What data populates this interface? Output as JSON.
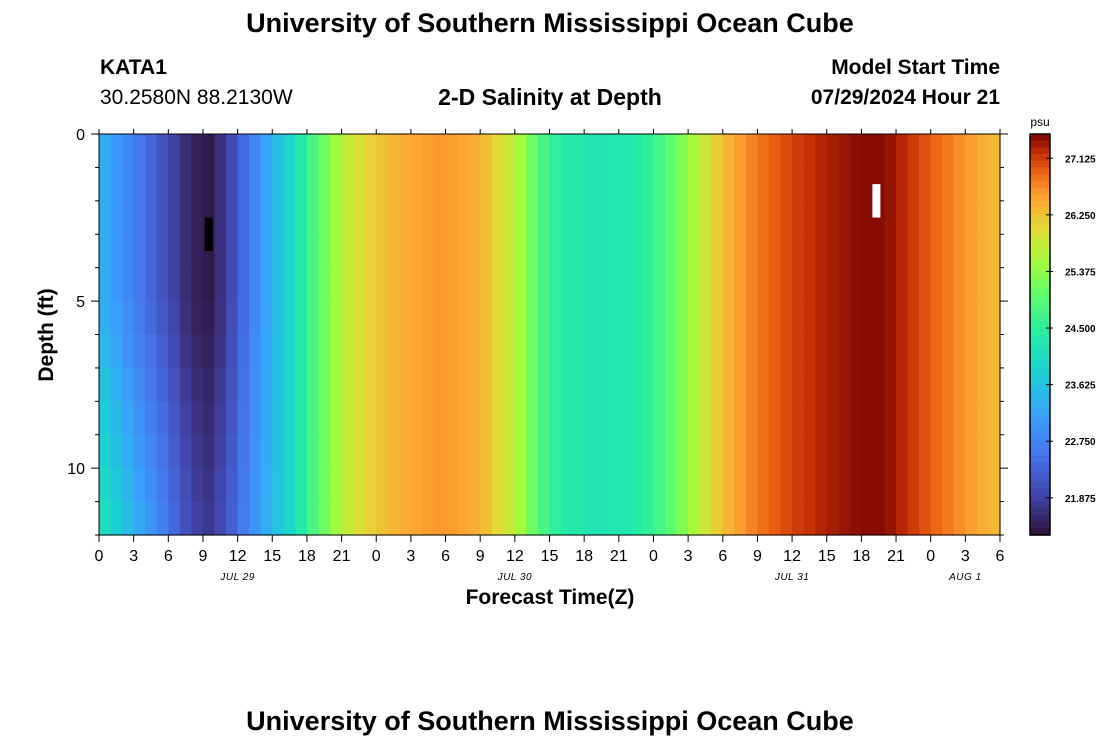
{
  "header": {
    "title": "University of Southern Mississippi Ocean Cube",
    "station_id": "KATA1",
    "coordinates": "30.2580N  88.2130W",
    "chart_title": "2-D Salinity at Depth",
    "model_start_label": "Model Start Time",
    "model_start_value": "07/29/2024 Hour 21"
  },
  "footer": {
    "title": "University of Southern Mississippi Ocean Cube"
  },
  "chart_data": {
    "type": "heatmap",
    "title": "2-D Salinity at Depth",
    "xlabel": "Forecast Time(Z)",
    "ylabel": "Depth (ft)",
    "x_hours_range": [
      0,
      78
    ],
    "x_ticks": [
      "0",
      "3",
      "6",
      "9",
      "12",
      "15",
      "18",
      "21",
      "0",
      "3",
      "6",
      "9",
      "12",
      "15",
      "18",
      "21",
      "0",
      "3",
      "6",
      "9",
      "12",
      "15",
      "18",
      "21",
      "0",
      "3",
      "6"
    ],
    "date_labels": [
      {
        "label": "JUL 29",
        "hour": 12
      },
      {
        "label": "JUL 30",
        "hour": 36
      },
      {
        "label": "JUL 31",
        "hour": 60
      },
      {
        "label": "AUG 1",
        "hour": 75
      }
    ],
    "y_range": [
      0,
      12
    ],
    "y_ticks": [
      "0",
      "5",
      "10"
    ],
    "y_tick_values": [
      0,
      5,
      10
    ],
    "colorbar_unit": "psu",
    "colorbar_ticks": [
      "27.125",
      "26.250",
      "25.375",
      "24.500",
      "23.625",
      "22.750",
      "21.875"
    ],
    "colorbar_values": [
      27.125,
      26.25,
      25.375,
      24.5,
      23.625,
      22.75,
      21.875
    ],
    "colorbar_range": [
      21.3,
      27.5
    ],
    "surface_salinity_by_hour": [
      {
        "hour": 0,
        "value": 23.4
      },
      {
        "hour": 3,
        "value": 22.7
      },
      {
        "hour": 6,
        "value": 22.0
      },
      {
        "hour": 8,
        "value": 21.5
      },
      {
        "hour": 9.5,
        "value": 21.4
      },
      {
        "hour": 11,
        "value": 21.8
      },
      {
        "hour": 13,
        "value": 22.6
      },
      {
        "hour": 15,
        "value": 23.4
      },
      {
        "hour": 16.5,
        "value": 23.9
      },
      {
        "hour": 18,
        "value": 24.6
      },
      {
        "hour": 20,
        "value": 25.3
      },
      {
        "hour": 22,
        "value": 25.9
      },
      {
        "hour": 24,
        "value": 26.2
      },
      {
        "hour": 27,
        "value": 26.5
      },
      {
        "hour": 30,
        "value": 26.6
      },
      {
        "hour": 33,
        "value": 26.4
      },
      {
        "hour": 36,
        "value": 25.7
      },
      {
        "hour": 38,
        "value": 24.9
      },
      {
        "hour": 40,
        "value": 24.4
      },
      {
        "hour": 43,
        "value": 24.2
      },
      {
        "hour": 46,
        "value": 24.3
      },
      {
        "hour": 48,
        "value": 24.6
      },
      {
        "hour": 50,
        "value": 25.1
      },
      {
        "hour": 52,
        "value": 25.7
      },
      {
        "hour": 54,
        "value": 26.3
      },
      {
        "hour": 57,
        "value": 26.8
      },
      {
        "hour": 60,
        "value": 27.1
      },
      {
        "hour": 63,
        "value": 27.3
      },
      {
        "hour": 66,
        "value": 27.45
      },
      {
        "hour": 68,
        "value": 27.45
      },
      {
        "hour": 70,
        "value": 27.2
      },
      {
        "hour": 72,
        "value": 26.95
      },
      {
        "hour": 75,
        "value": 26.6
      },
      {
        "hour": 78,
        "value": 26.3
      }
    ],
    "deep_freshening": {
      "end_hour": 17,
      "delta_at_bottom": 0.9
    },
    "markers": [
      {
        "hour": 9.5,
        "depth_top": 2.5,
        "depth_bottom": 3.5,
        "color": "#000000"
      },
      {
        "hour": 67.3,
        "depth_top": 1.5,
        "depth_bottom": 2.5,
        "color": "#ffffff"
      }
    ]
  }
}
